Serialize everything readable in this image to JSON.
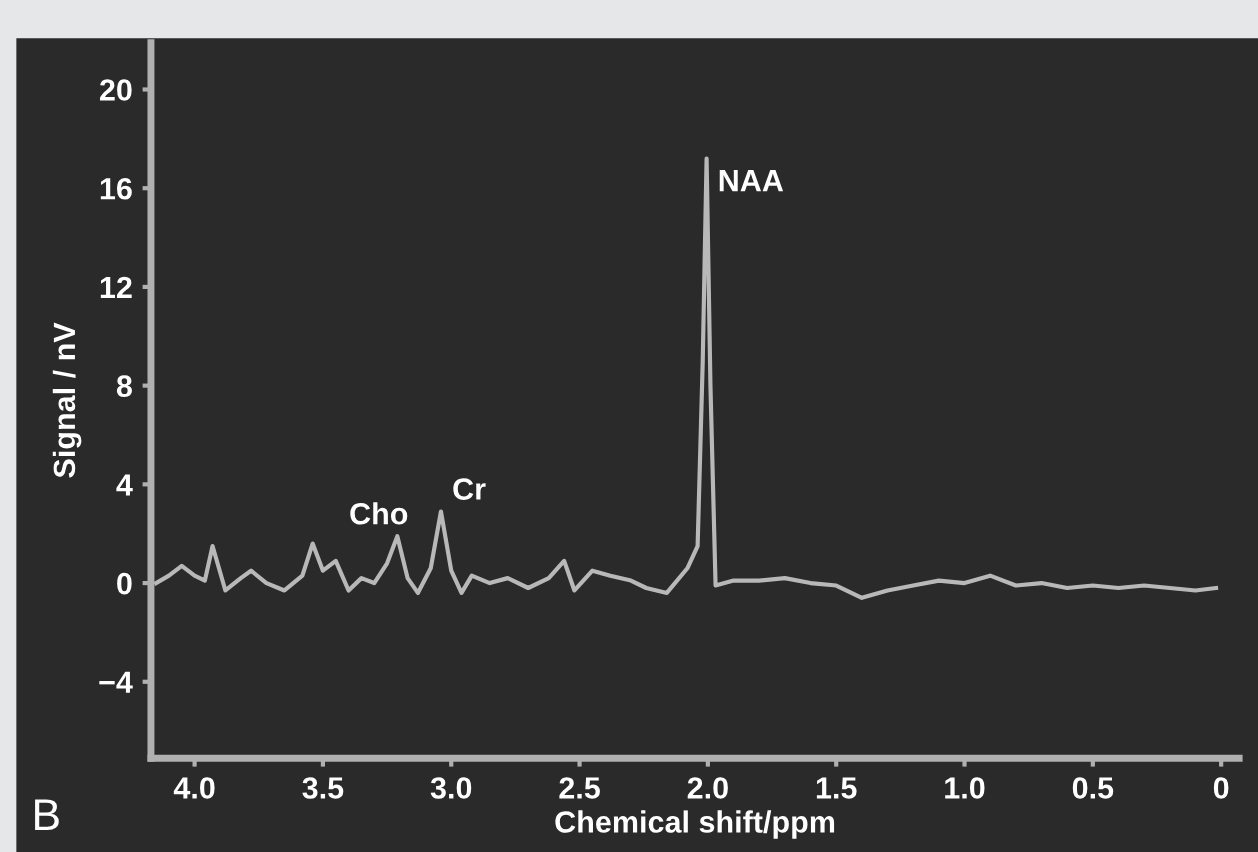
{
  "chart_data": {
    "type": "line",
    "xlabel": "Chemical shift/ppm",
    "ylabel": "Signal / nV",
    "x": [
      4.15,
      4.1,
      4.05,
      4.0,
      3.96,
      3.93,
      3.88,
      3.82,
      3.78,
      3.72,
      3.65,
      3.58,
      3.54,
      3.5,
      3.45,
      3.4,
      3.35,
      3.3,
      3.25,
      3.21,
      3.17,
      3.13,
      3.08,
      3.04,
      3.0,
      2.96,
      2.92,
      2.85,
      2.78,
      2.7,
      2.62,
      2.56,
      2.52,
      2.45,
      2.38,
      2.3,
      2.24,
      2.16,
      2.08,
      2.04,
      2.02,
      2.005,
      1.99,
      1.97,
      1.9,
      1.8,
      1.7,
      1.6,
      1.5,
      1.4,
      1.3,
      1.2,
      1.1,
      1.0,
      0.9,
      0.8,
      0.7,
      0.6,
      0.5,
      0.4,
      0.3,
      0.2,
      0.1,
      0.02
    ],
    "series": [
      {
        "color": "#b8b8b8",
        "values": [
          0,
          0.3,
          0.7,
          0.3,
          0.1,
          1.5,
          -0.3,
          0.2,
          0.5,
          0,
          -0.3,
          0.3,
          1.6,
          0.5,
          0.9,
          -0.3,
          0.2,
          0,
          0.8,
          1.9,
          0.2,
          -0.4,
          0.6,
          2.9,
          0.5,
          -0.4,
          0.3,
          0,
          0.2,
          -0.2,
          0.2,
          0.9,
          -0.3,
          0.5,
          0.3,
          0.1,
          -0.2,
          -0.4,
          0.6,
          1.5,
          9,
          17.2,
          8,
          -0.1,
          0.1,
          0.1,
          0.2,
          0,
          -0.1,
          -0.6,
          -0.3,
          -0.1,
          0.1,
          0,
          0.3,
          -0.1,
          0,
          -0.2,
          -0.1,
          -0.2,
          -0.1,
          -0.2,
          -0.3,
          -0.2
        ]
      }
    ],
    "xlim": [
      4.17,
      -0.07
    ],
    "ylim": [
      -7.1,
      21.9
    ],
    "xticks": [
      {
        "value": 4.0,
        "label": "4.0"
      },
      {
        "value": 3.5,
        "label": "3.5"
      },
      {
        "value": 3.0,
        "label": "3.0"
      },
      {
        "value": 2.5,
        "label": "2.5"
      },
      {
        "value": 2.0,
        "label": "2.0"
      },
      {
        "value": 1.5,
        "label": "1.5"
      },
      {
        "value": 1.0,
        "label": "1.0"
      },
      {
        "value": 0.5,
        "label": "0.5"
      },
      0
    ],
    "yticks": [
      {
        "value": -4,
        "label": "−4"
      },
      0,
      4,
      8,
      12,
      16,
      20
    ],
    "grid": false,
    "marker": "none",
    "line_style": "solid",
    "annotations": [
      {
        "text": "Cho",
        "x": 3.21,
        "y": 1.9
      },
      {
        "text": "Cr",
        "x": 3.04,
        "y": 2.9
      },
      {
        "text": "NAA",
        "x": 2.005,
        "y": 17.2
      },
      "B"
    ]
  }
}
